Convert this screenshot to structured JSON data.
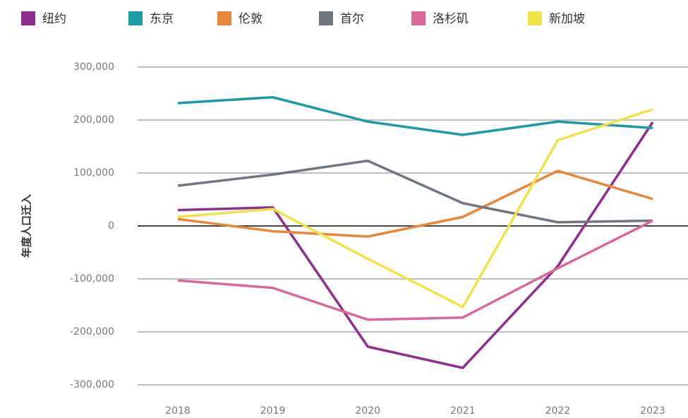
{
  "chart_data": {
    "type": "line",
    "y_label": "年度人口迁入",
    "categories": [
      "2018",
      "2019",
      "2020",
      "2021",
      "2022",
      "2023"
    ],
    "series": [
      {
        "name": "纽约",
        "color": "#8e2f8e",
        "values": [
          30000,
          35000,
          -228000,
          -268000,
          -76000,
          196000
        ]
      },
      {
        "name": "东京",
        "color": "#1d9aa8",
        "values": [
          232000,
          243000,
          197000,
          172000,
          197000,
          185000
        ]
      },
      {
        "name": "伦敦",
        "color": "#e8873a",
        "values": [
          13000,
          -10000,
          -20000,
          17000,
          104000,
          51000
        ]
      },
      {
        "name": "首尔",
        "color": "#6f7680",
        "values": [
          76000,
          97000,
          123000,
          43000,
          7000,
          10000
        ]
      },
      {
        "name": "洛杉矶",
        "color": "#d9679a",
        "values": [
          -103000,
          -117000,
          -177000,
          -173000,
          -80000,
          10000
        ]
      },
      {
        "name": "新加坡",
        "color": "#f2e24a",
        "values": [
          17000,
          32000,
          -62000,
          -153000,
          162000,
          220000
        ]
      }
    ],
    "ylim": [
      -300000,
      300000
    ],
    "yticks": [
      {
        "value": -300000,
        "label": "-300,000"
      },
      {
        "value": -200000,
        "label": "-200,000"
      },
      {
        "value": -100000,
        "label": "-100,000"
      },
      0,
      {
        "value": 100000,
        "label": "100,000"
      },
      {
        "value": 200000,
        "label": "200,000"
      },
      {
        "value": 300000,
        "label": "300,000"
      }
    ],
    "grid": true,
    "legend": "top"
  }
}
